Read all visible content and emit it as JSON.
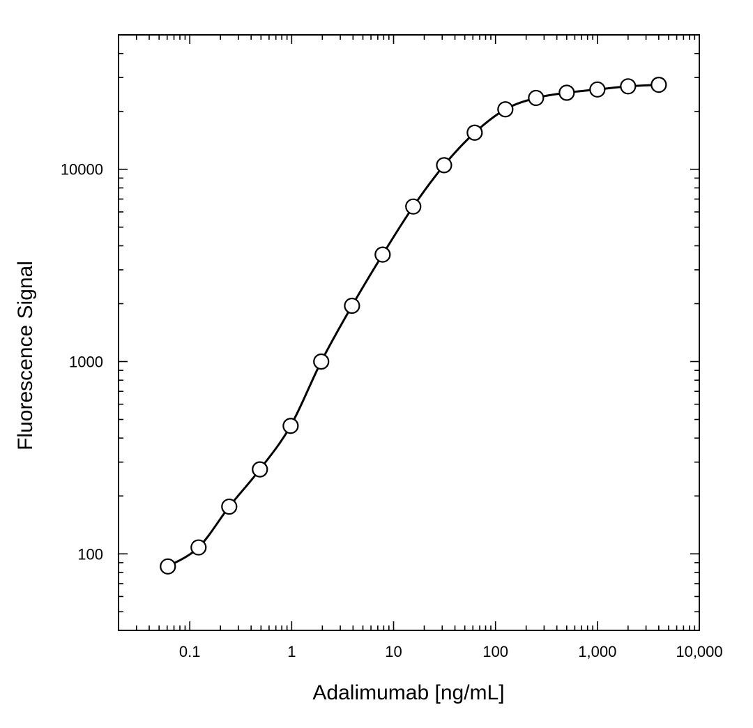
{
  "chart_data": {
    "type": "line",
    "xlabel": "Adalimumab [ng/mL]",
    "ylabel": "Fluorescence Signal",
    "xscale": "log",
    "yscale": "log",
    "xlim": [
      0.02,
      10000
    ],
    "ylim": [
      40,
      50000
    ],
    "x_ticks": [
      {
        "value": 0.1,
        "label": "0.1"
      },
      {
        "value": 1,
        "label": "1"
      },
      {
        "value": 10,
        "label": "10"
      },
      {
        "value": 100,
        "label": "100"
      },
      {
        "value": 1000,
        "label": "1,000"
      },
      {
        "value": 10000,
        "label": "10,000"
      }
    ],
    "y_ticks": [
      {
        "value": 100,
        "label": "100"
      },
      {
        "value": 1000,
        "label": "1000"
      },
      {
        "value": 10000,
        "label": "10000"
      }
    ],
    "grid": false,
    "legend": "none",
    "series": [
      {
        "marker": "open-circle",
        "x": [
          0.061,
          0.122,
          0.244,
          0.488,
          0.977,
          1.95,
          3.91,
          7.81,
          15.6,
          31.3,
          62.5,
          125,
          250,
          500,
          1000,
          2000,
          4000
        ],
        "y": [
          86,
          108,
          176,
          275,
          463,
          1000,
          1950,
          3600,
          6400,
          10500,
          15500,
          20500,
          23500,
          25000,
          26000,
          27000,
          27500
        ]
      }
    ]
  }
}
